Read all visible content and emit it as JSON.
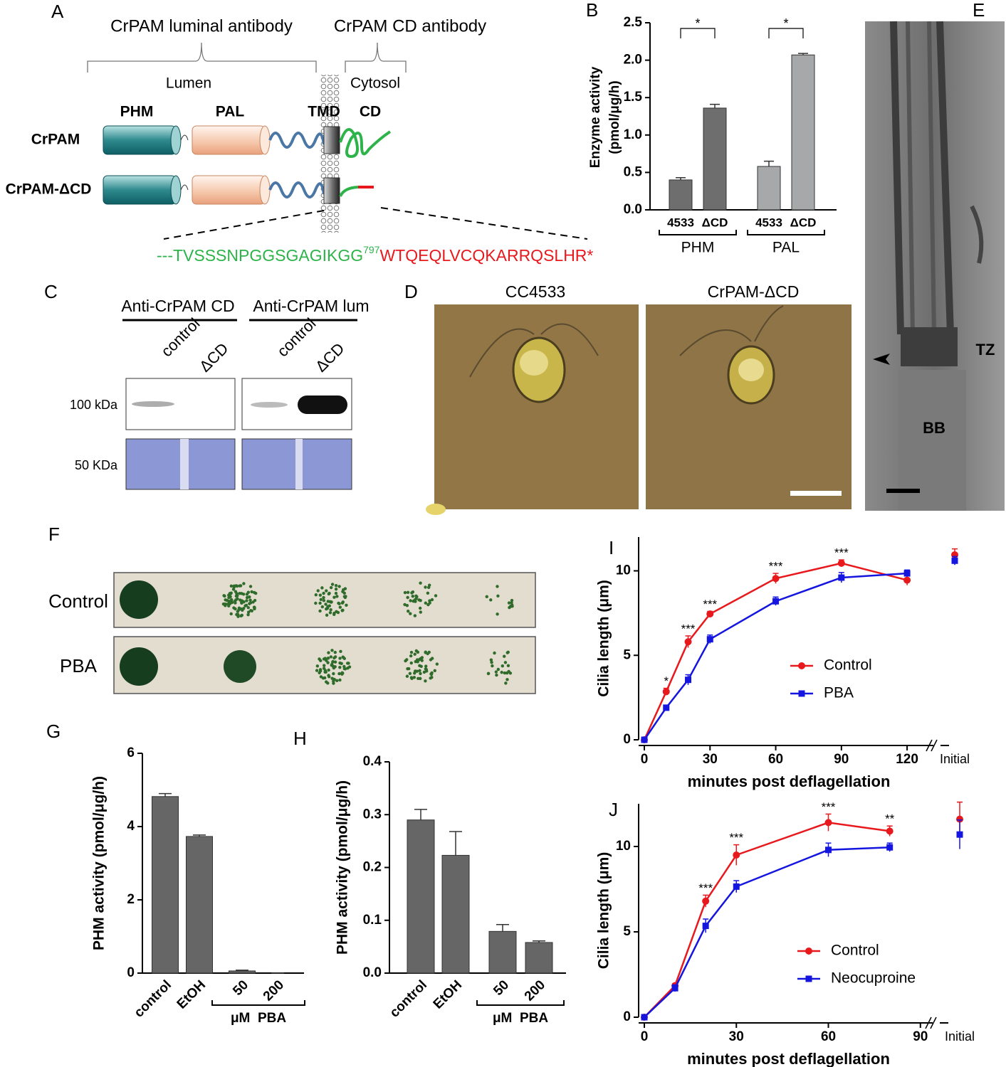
{
  "panel_labels": [
    "A",
    "B",
    "C",
    "D",
    "E",
    "F",
    "G",
    "H",
    "I",
    "J"
  ],
  "diagram": {
    "luminal_antibody": "CrPAM luminal antibody",
    "cd_antibody": "CrPAM CD antibody",
    "lumen": "Lumen",
    "cytosol": "Cytosol",
    "domains": [
      "PHM",
      "PAL",
      "TMD",
      "CD"
    ],
    "constructs": [
      "CrPAM",
      "CrPAM-ΔCD"
    ],
    "sequence": {
      "retained": "---TVSSSNPGGSGAGIKGG",
      "position": "797",
      "added": "WTQEQLVCQKARRQSLHR*"
    }
  },
  "blot": {
    "antibodies": [
      "Anti-CrPAM CD",
      "Anti-CrPAM lum"
    ],
    "lanes": [
      "control",
      "ΔCD",
      "control",
      "ΔCD"
    ],
    "markers": [
      "100 kDa",
      "50 KDa"
    ]
  },
  "micrographs": {
    "strains": [
      "CC4533",
      "CrPAM-ΔCD"
    ]
  },
  "em_labels": [
    "TZ",
    "BB"
  ],
  "spot_assay": {
    "conditions": [
      "Control",
      "PBA"
    ]
  },
  "chart_data": [
    {
      "type": "grouped_bar",
      "ylabel": [
        "Enzyme activity",
        "(pmol/μg/h)"
      ],
      "categories": [
        "4533",
        "ΔCD"
      ],
      "series": [
        {
          "name": "PHM",
          "color": "#6e6e6e",
          "values": [
            0.4,
            1.36
          ],
          "errors": [
            0.03,
            0.05
          ],
          "significance": "*"
        },
        {
          "name": "PAL",
          "color": "#a7a8aa",
          "values": [
            0.58,
            2.07
          ],
          "errors": [
            0.07,
            0.02
          ],
          "significance": "*"
        }
      ],
      "ylim": [
        0,
        2.5
      ],
      "yticks": [
        {
          "value": 0,
          "label": "0.0"
        },
        0.5,
        {
          "value": 1,
          "label": "1.0"
        },
        1.5,
        {
          "value": 2,
          "label": "2.0"
        },
        2.5
      ]
    },
    {
      "type": "bar",
      "ylabel": "PHM activity (pmol/μg/h)",
      "categories": [
        "control",
        "EtOH",
        "50",
        "200"
      ],
      "values": [
        4.82,
        3.73,
        0.06,
        0
      ],
      "errors": [
        0.08,
        0.04,
        0.02,
        0
      ],
      "color": "#666666",
      "group_label": "μM  PBA",
      "ylim": [
        0,
        6
      ],
      "yticks": [
        0,
        2,
        4,
        6
      ]
    },
    {
      "type": "bar",
      "ylabel": "PHM activity (pmol/μg/h)",
      "categories": [
        "control",
        "EtOH",
        "50",
        "200"
      ],
      "values": [
        0.29,
        0.223,
        0.079,
        0.058
      ],
      "errors": [
        0.02,
        0.045,
        0.013,
        0.003
      ],
      "color": "#666666",
      "group_label": "μM  PBA",
      "ylim": [
        0,
        0.4
      ],
      "yticks": [
        {
          "value": 0,
          "label": "0.0"
        },
        0.1,
        0.2,
        0.3,
        0.4
      ]
    },
    {
      "type": "line",
      "xlabel": "minutes post deflagellation",
      "ylabel": "Cilia length (μm)",
      "x": [
        0,
        10,
        20,
        30,
        60,
        90,
        120
      ],
      "series": [
        {
          "name": "Control",
          "color": "#e8191d",
          "marker": "circle",
          "values": [
            0,
            2.85,
            5.8,
            7.45,
            9.55,
            10.45,
            9.45
          ],
          "errors": [
            0,
            0.2,
            0.35,
            0.15,
            0.3,
            0.2,
            0.3
          ],
          "initial": 10.95,
          "initial_error": 0.35
        },
        {
          "name": "PBA",
          "color": "#1515e0",
          "marker": "square",
          "values": [
            0,
            1.9,
            3.55,
            5.95,
            8.2,
            9.6,
            9.85
          ],
          "errors": [
            0,
            0.15,
            0.3,
            0.25,
            0.25,
            0.3,
            0.2
          ],
          "initial": 10.6,
          "initial_error": 0.25
        }
      ],
      "significance": [
        null,
        "*",
        "***",
        "***",
        "***",
        "***",
        null
      ],
      "initial_label": "Initial",
      "xlim": [
        0,
        132
      ],
      "xticks": [
        0,
        30,
        60,
        90,
        120
      ],
      "ylim": [
        0,
        12
      ],
      "yticks": [
        0,
        5,
        10
      ]
    },
    {
      "type": "line",
      "xlabel": "minutes post deflagellation",
      "ylabel": "Cilia length (μm)",
      "x": [
        0,
        10,
        20,
        30,
        60,
        80
      ],
      "series": [
        {
          "name": "Control",
          "color": "#e8191d",
          "marker": "circle",
          "values": [
            0,
            1.85,
            6.8,
            9.5,
            11.4,
            10.9
          ],
          "errors": [
            0,
            0.1,
            0.35,
            0.6,
            0.5,
            0.3
          ],
          "initial": 11.6,
          "initial_error": 1.0
        },
        {
          "name": "Neocuproine",
          "color": "#1515e0",
          "marker": "square",
          "values": [
            0,
            1.7,
            5.35,
            7.65,
            9.8,
            9.95
          ],
          "errors": [
            0,
            0.2,
            0.4,
            0.35,
            0.4,
            0.25
          ],
          "initial": 10.7,
          "initial_error": 0.85
        }
      ],
      "significance": [
        null,
        null,
        "***",
        "***",
        "***",
        "**"
      ],
      "initial_label": "Initial",
      "xlim": [
        0,
        94
      ],
      "xticks": [
        0,
        30,
        60,
        90
      ],
      "ylim": [
        0,
        12.5
      ],
      "yticks": [
        0,
        5,
        10
      ]
    }
  ]
}
